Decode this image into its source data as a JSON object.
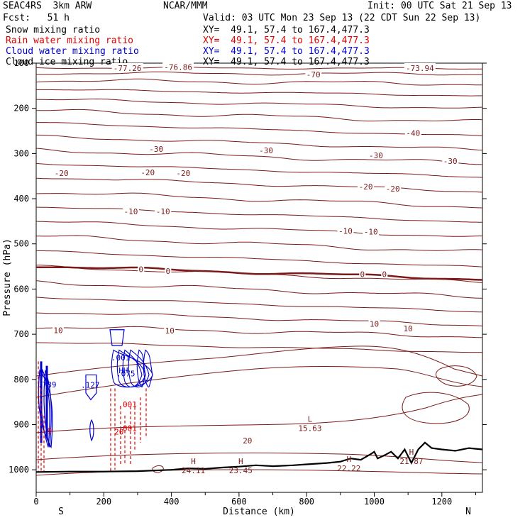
{
  "header": {
    "model": "SEAC4RS  3km ARW",
    "org": "NCAR/MMM",
    "init": "Init: 00 UTC Sat 21 Sep 13",
    "fcst": "Fcst:   51 h",
    "valid": "Valid: 03 UTC Mon 23 Sep 13 (22 CDT Sun 22 Sep 13)"
  },
  "fields": [
    {
      "name": "Snow mixing ratio",
      "xy": "XY=  49.1, 57.4 to 167.4,477.3",
      "color": "#000000"
    },
    {
      "name": "Rain water mixing ratio",
      "xy": "XY=  49.1, 57.4 to 167.4,477.3",
      "color": "#e00000"
    },
    {
      "name": "Cloud water mixing ratio",
      "xy": "XY=  49.1, 57.4 to 167.4,477.3",
      "color": "#0000cc"
    },
    {
      "name": "Cloud ice mixing ratio",
      "xy": "XY=  49.1, 57.4 to 167.4,477.3",
      "color": "#000000"
    }
  ],
  "chart_data": {
    "type": "contour",
    "xlabel": "Distance (km)",
    "ylabel": "Pressure (hPa)",
    "xlim": [
      0,
      1320
    ],
    "ylim": [
      1050,
      100
    ],
    "x_ticks": [
      "0",
      "200",
      "400",
      "600",
      "800",
      "1000",
      "1200"
    ],
    "y_ticks": [
      "100",
      "200",
      "300",
      "400",
      "500",
      "600",
      "700",
      "800",
      "900",
      "1000"
    ],
    "end_labels": {
      "left": "S",
      "right": "N"
    },
    "colors": {
      "temperature": "#7a1a1a",
      "rain": "#e00000",
      "cloud_water": "#0000cc",
      "terrain": "#000000"
    },
    "isotherm_labels": [
      {
        "text": "-77.26",
        "x": 270,
        "p": 111
      },
      {
        "text": "-76.86",
        "x": 420,
        "p": 109
      },
      {
        "text": "-73.94",
        "x": 1135,
        "p": 111
      },
      {
        "text": "-70",
        "x": 820,
        "p": 125
      },
      {
        "text": "-40",
        "x": 1115,
        "p": 255
      },
      {
        "text": "-30",
        "x": 355,
        "p": 290
      },
      {
        "text": "-30",
        "x": 680,
        "p": 293
      },
      {
        "text": "-30",
        "x": 1005,
        "p": 304
      },
      {
        "text": "-30",
        "x": 1225,
        "p": 317
      },
      {
        "text": "-20",
        "x": 75,
        "p": 343
      },
      {
        "text": "-20",
        "x": 330,
        "p": 342
      },
      {
        "text": "-20",
        "x": 435,
        "p": 343
      },
      {
        "text": "-20",
        "x": 975,
        "p": 373
      },
      {
        "text": "-20",
        "x": 1055,
        "p": 378
      },
      {
        "text": "-10",
        "x": 280,
        "p": 428
      },
      {
        "text": "-10",
        "x": 375,
        "p": 428
      },
      {
        "text": "-10",
        "x": 915,
        "p": 471
      },
      {
        "text": "-10",
        "x": 990,
        "p": 473
      },
      {
        "text": "0",
        "x": 310,
        "p": 556
      },
      {
        "text": "0",
        "x": 390,
        "p": 560
      },
      {
        "text": "0",
        "x": 965,
        "p": 567
      },
      {
        "text": "0",
        "x": 1030,
        "p": 567
      },
      {
        "text": "10",
        "x": 65,
        "p": 691
      },
      {
        "text": "10",
        "x": 395,
        "p": 692
      },
      {
        "text": "10",
        "x": 1000,
        "p": 677
      },
      {
        "text": "10",
        "x": 1100,
        "p": 687
      },
      {
        "text": "20",
        "x": 625,
        "p": 935
      }
    ],
    "extrema": [
      {
        "kind": "L",
        "value": "15.63",
        "x": 810,
        "p": 897
      },
      {
        "kind": "H",
        "value": "24.11",
        "x": 465,
        "p": 990
      },
      {
        "kind": "H",
        "value": "23.45",
        "x": 605,
        "p": 990
      },
      {
        "kind": "H",
        "value": "22.22",
        "x": 925,
        "p": 986
      },
      {
        "kind": "H",
        "value": "21.87",
        "x": 1110,
        "p": 970
      }
    ],
    "cloud_labels": [
      {
        "text": ".001",
        "x": 250,
        "p": 752
      },
      {
        "text": "HH",
        "x": 258,
        "p": 780
      },
      {
        "text": ".789",
        "x": 32,
        "p": 811
      },
      {
        "text": ".127",
        "x": 160,
        "p": 812
      },
      {
        "text": ".075",
        "x": 265,
        "p": 787
      }
    ],
    "rain_labels": [
      {
        "text": ".001",
        "x": 270,
        "p": 855
      },
      {
        "text": ".001",
        "x": 270,
        "p": 908
      },
      {
        "text": "20",
        "x": 245,
        "p": 916
      },
      {
        "text": "9",
        "x": 40,
        "p": 913
      }
    ]
  }
}
